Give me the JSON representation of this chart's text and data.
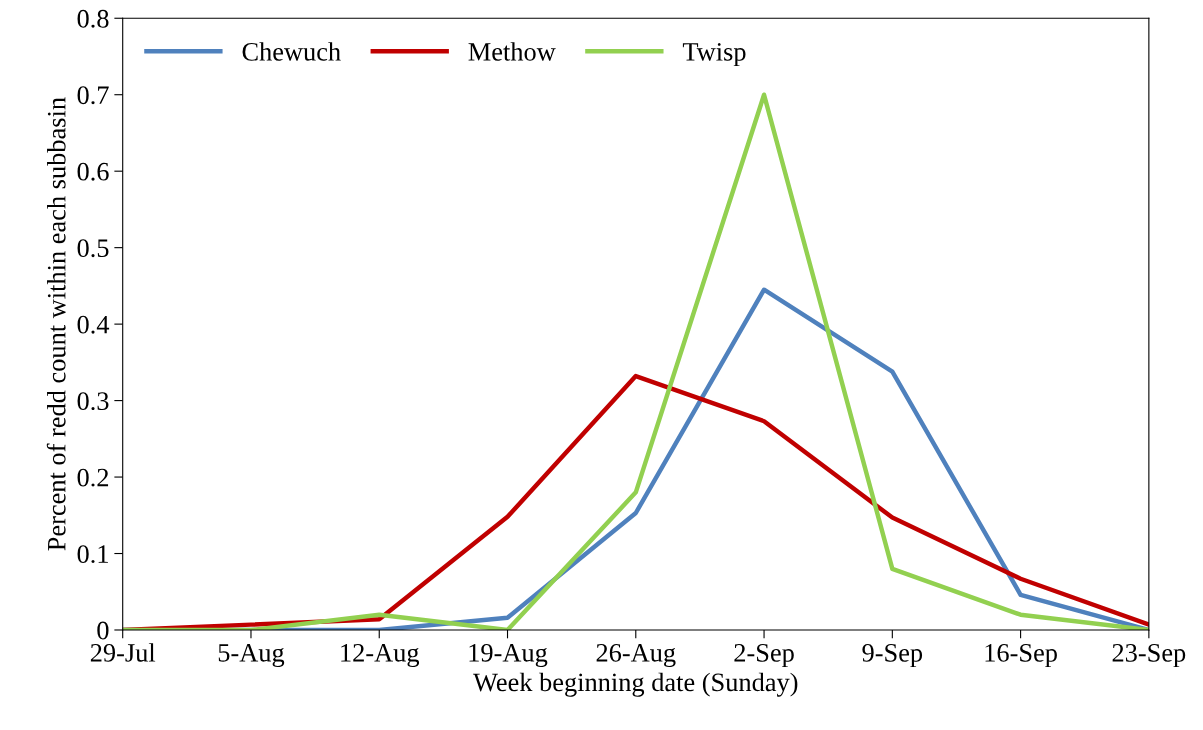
{
  "chart_data": {
    "type": "line",
    "xlabel": "Week beginning date (Sunday)",
    "ylabel": "Percent of redd count within each subbasin",
    "categories": [
      "29-Jul",
      "5-Aug",
      "12-Aug",
      "19-Aug",
      "26-Aug",
      "2-Sep",
      "9-Sep",
      "16-Sep",
      "23-Sep"
    ],
    "series": [
      {
        "name": "Chewuch",
        "color": "#4f81bd",
        "values": [
          0,
          0,
          0,
          0.016,
          0.153,
          0.445,
          0.338,
          0.046,
          0
        ]
      },
      {
        "name": "Methow",
        "color": "#c00000",
        "values": [
          0,
          0.007,
          0.014,
          0.148,
          0.332,
          0.273,
          0.147,
          0.067,
          0.007
        ]
      },
      {
        "name": "Twisp",
        "color": "#92d050",
        "values": [
          0,
          0,
          0.02,
          0,
          0.18,
          0.7,
          0.08,
          0.02,
          0
        ]
      }
    ],
    "ylim": [
      0,
      0.8
    ],
    "yticks": [
      {
        "value": 0,
        "label": "0"
      },
      0.1,
      0.2,
      0.3,
      0.4,
      0.5,
      0.6,
      0.7,
      0.8
    ],
    "grid": false,
    "legend": "top left",
    "marker": "none",
    "line_style": "solid"
  }
}
